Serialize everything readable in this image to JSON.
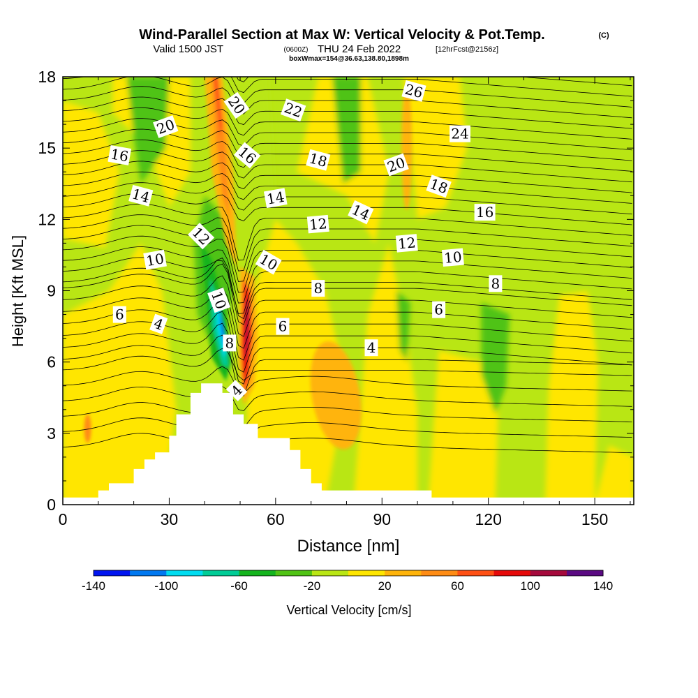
{
  "header": {
    "title": "Wind-Parallel Section at Max W: Vertical Velocity & Pot.Temp.",
    "copyright": "(C)",
    "valid_prefix": "Valid 1500 JST",
    "valid_zulu": "(0600Z)",
    "valid_date": "THU 24 Feb 2022",
    "forecast": "[12hrFcst@2156z]",
    "box_info": "boxWmax=154@36.63,138.80,1898m"
  },
  "chart_data": {
    "type": "heatmap",
    "xlabel": "Distance [nm]",
    "ylabel": "Height [Kft MSL]",
    "xlim": [
      0,
      161
    ],
    "ylim": [
      0,
      18
    ],
    "x_ticks": [
      0,
      30,
      60,
      90,
      120,
      150
    ],
    "y_ticks": [
      0,
      3,
      6,
      9,
      12,
      15,
      18
    ],
    "colorbar": {
      "label": "Vertical Velocity [cm/s]",
      "tick_labels": [
        "-140",
        "-100",
        "-60",
        "-20",
        "20",
        "60",
        "100",
        "140"
      ],
      "levels": [
        -140,
        -120,
        -100,
        -80,
        -60,
        -40,
        -20,
        0,
        20,
        40,
        60,
        80,
        100,
        120,
        140
      ],
      "colors": [
        "#0014f0",
        "#0078f0",
        "#00dcf0",
        "#00cc96",
        "#14b41e",
        "#50c314",
        "#b9e614",
        "#ffe600",
        "#ffb40a",
        "#ff8c14",
        "#ff5014",
        "#e60a0a",
        "#a50a3c",
        "#5a0a82"
      ]
    },
    "terrain_profile": [
      [
        0,
        0.3
      ],
      [
        10,
        0.3
      ],
      [
        10,
        0.6
      ],
      [
        13,
        0.6
      ],
      [
        13,
        0.9
      ],
      [
        20,
        0.9
      ],
      [
        20,
        1.5
      ],
      [
        23,
        1.5
      ],
      [
        23,
        1.9
      ],
      [
        26,
        1.9
      ],
      [
        26,
        2.2
      ],
      [
        30,
        2.2
      ],
      [
        30,
        2.9
      ],
      [
        32,
        2.9
      ],
      [
        32,
        3.8
      ],
      [
        36,
        3.8
      ],
      [
        36,
        4.7
      ],
      [
        39,
        4.7
      ],
      [
        39,
        5.1
      ],
      [
        45,
        5.1
      ],
      [
        45,
        4.7
      ],
      [
        48,
        4.7
      ],
      [
        48,
        3.8
      ],
      [
        51,
        3.8
      ],
      [
        51,
        3.4
      ],
      [
        55,
        3.4
      ],
      [
        55,
        2.8
      ],
      [
        64,
        2.8
      ],
      [
        64,
        2.3
      ],
      [
        67,
        2.3
      ],
      [
        67,
        1.5
      ],
      [
        70,
        1.5
      ],
      [
        70,
        0.9
      ],
      [
        73,
        0.9
      ],
      [
        73,
        0.6
      ],
      [
        104,
        0.6
      ],
      [
        104,
        0.3
      ],
      [
        161,
        0.3
      ]
    ],
    "contour_labels": [
      {
        "text": "20",
        "x": 29,
        "y": 15.9,
        "rot": -20
      },
      {
        "text": "16",
        "x": 16,
        "y": 14.7,
        "rot": 10
      },
      {
        "text": "14",
        "x": 22,
        "y": 13.0,
        "rot": 15
      },
      {
        "text": "12",
        "x": 39,
        "y": 11.3,
        "rot": 45
      },
      {
        "text": "10",
        "x": 26,
        "y": 10.3,
        "rot": -10
      },
      {
        "text": "6",
        "x": 16,
        "y": 8.0,
        "rot": 0
      },
      {
        "text": "4",
        "x": 27,
        "y": 7.6,
        "rot": 20
      },
      {
        "text": "10",
        "x": 44,
        "y": 8.6,
        "rot": 70
      },
      {
        "text": "8",
        "x": 47,
        "y": 6.8,
        "rot": 0
      },
      {
        "text": "4",
        "x": 49,
        "y": 4.8,
        "rot": -45
      },
      {
        "text": "20",
        "x": 49,
        "y": 16.8,
        "rot": 55
      },
      {
        "text": "16",
        "x": 52,
        "y": 14.7,
        "rot": 40
      },
      {
        "text": "14",
        "x": 60,
        "y": 12.9,
        "rot": -10
      },
      {
        "text": "10",
        "x": 58,
        "y": 10.2,
        "rot": 30
      },
      {
        "text": "6",
        "x": 62,
        "y": 7.5,
        "rot": 0
      },
      {
        "text": "8",
        "x": 72,
        "y": 9.1,
        "rot": 0
      },
      {
        "text": "12",
        "x": 72,
        "y": 11.8,
        "rot": -5
      },
      {
        "text": "18",
        "x": 72,
        "y": 14.5,
        "rot": 15
      },
      {
        "text": "22",
        "x": 65,
        "y": 16.6,
        "rot": 20
      },
      {
        "text": "14",
        "x": 84,
        "y": 12.3,
        "rot": 25
      },
      {
        "text": "4",
        "x": 87,
        "y": 6.6,
        "rot": 0
      },
      {
        "text": "12",
        "x": 97,
        "y": 11.0,
        "rot": -5
      },
      {
        "text": "20",
        "x": 94,
        "y": 14.3,
        "rot": -20
      },
      {
        "text": "26",
        "x": 99,
        "y": 17.4,
        "rot": 15
      },
      {
        "text": "24",
        "x": 112,
        "y": 15.6,
        "rot": 0
      },
      {
        "text": "18",
        "x": 106,
        "y": 13.4,
        "rot": 20
      },
      {
        "text": "16",
        "x": 119,
        "y": 12.3,
        "rot": 0
      },
      {
        "text": "10",
        "x": 110,
        "y": 10.4,
        "rot": -5
      },
      {
        "text": "8",
        "x": 122,
        "y": 9.3,
        "rot": 0
      },
      {
        "text": "6",
        "x": 106,
        "y": 8.2,
        "rot": 0
      }
    ]
  }
}
